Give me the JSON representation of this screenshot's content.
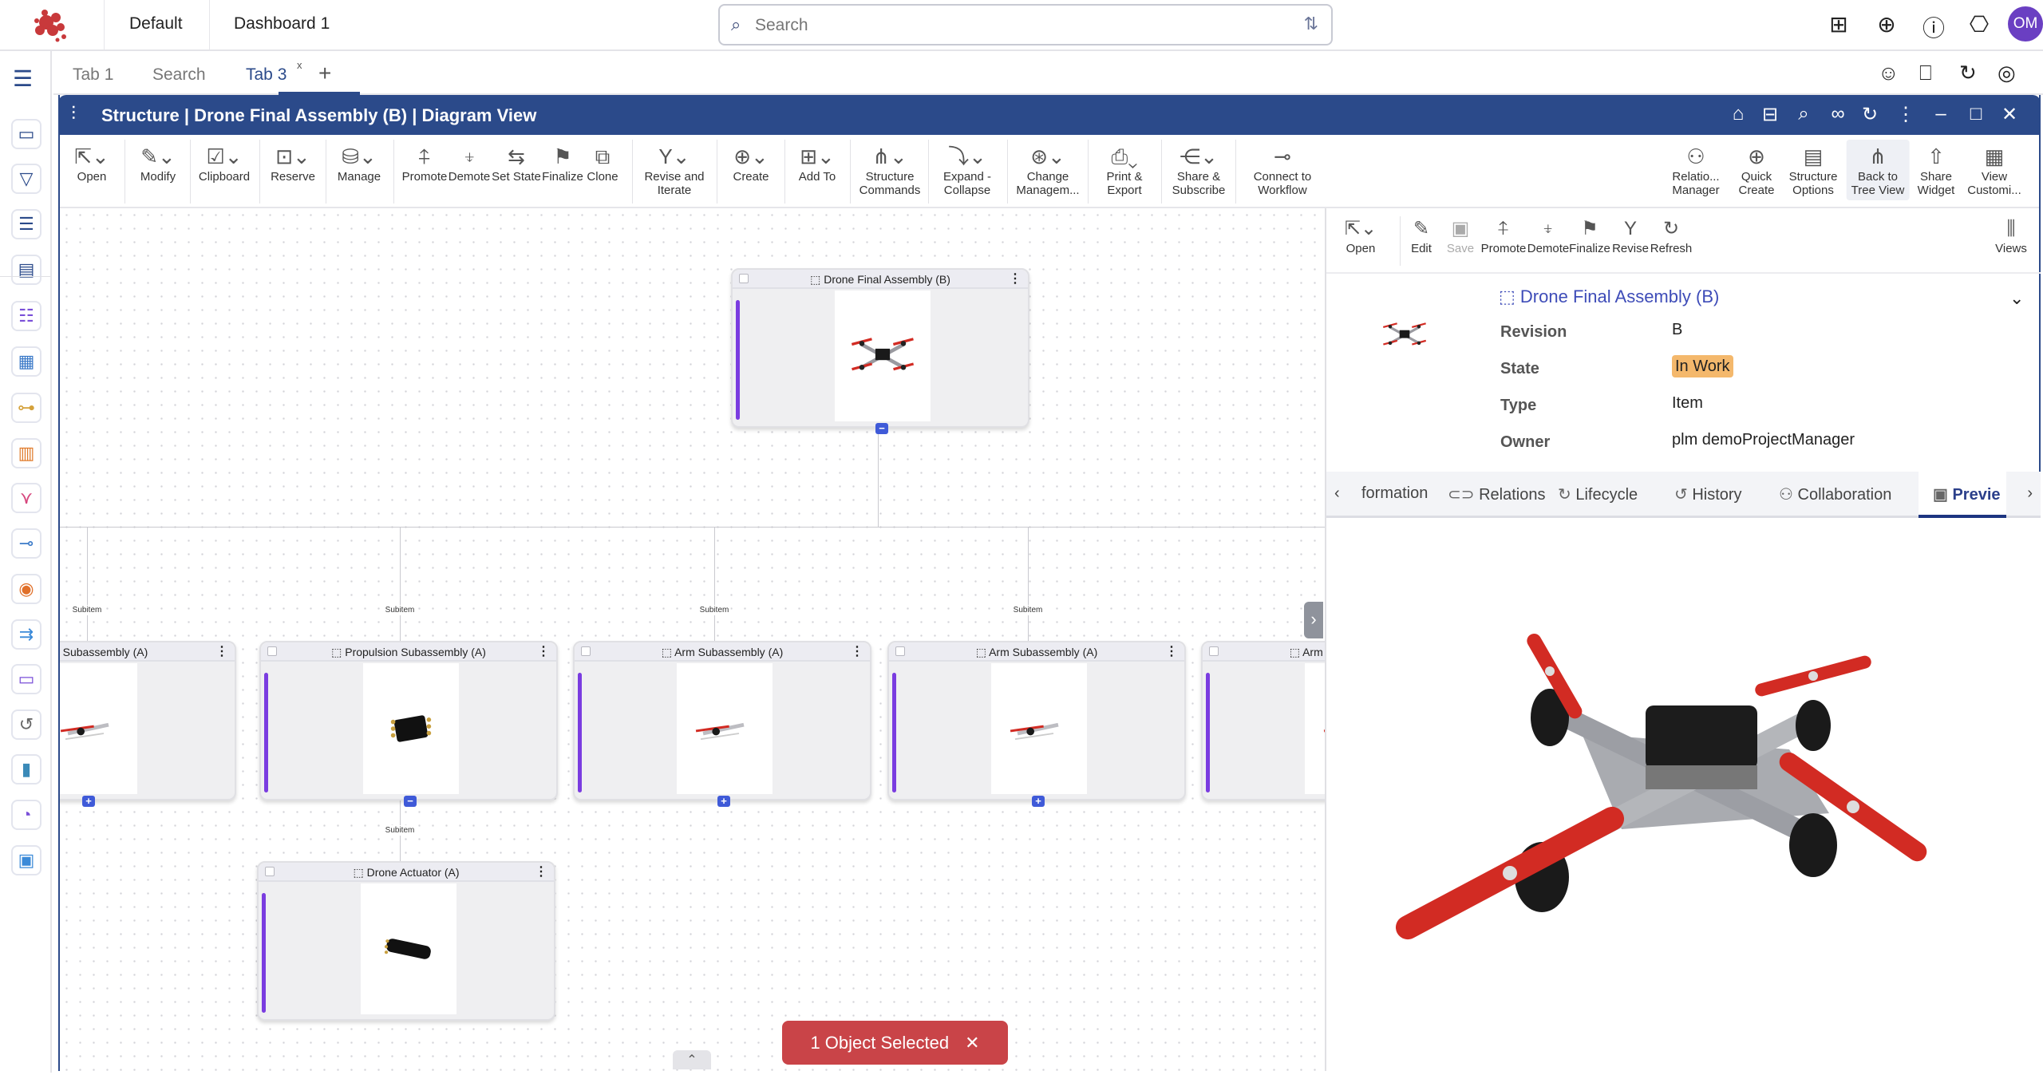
{
  "app": {
    "nav": [
      "Default",
      "Dashboard 1"
    ],
    "search_placeholder": "Search",
    "avatar_initials": "OM",
    "top_icons": [
      "excel-icon",
      "add-icon",
      "help-icon",
      "bell-icon"
    ],
    "brand_color": "#c8393b"
  },
  "sidebar": {
    "items": [
      {
        "icon": "window-icon",
        "color": "#2b4a8a",
        "glyph": "▭"
      },
      {
        "icon": "filter-icon",
        "color": "#2b4a8a",
        "glyph": "▽"
      },
      {
        "icon": "list-icon",
        "color": "#2b4a8a",
        "glyph": "☰"
      },
      {
        "icon": "clipboard-icon",
        "color": "#2b4a8a",
        "glyph": "▤"
      },
      {
        "icon": "form-list-icon",
        "color": "#7a4fd8",
        "glyph": "☷"
      },
      {
        "icon": "table-icon",
        "color": "#3b7ac8",
        "glyph": "▦"
      },
      {
        "icon": "tree-icon",
        "color": "#d4a13a",
        "glyph": "⊶"
      },
      {
        "icon": "board-icon",
        "color": "#e07a2a",
        "glyph": "▥"
      },
      {
        "icon": "branch-icon",
        "color": "#d6457c",
        "glyph": "⋎"
      },
      {
        "icon": "workflow-icon",
        "color": "#3b7ac8",
        "glyph": "⊸"
      },
      {
        "icon": "viewer-icon",
        "color": "#e0702a",
        "glyph": "◉"
      },
      {
        "icon": "merge-icon",
        "color": "#3b8ad8",
        "glyph": "⇉"
      },
      {
        "icon": "document-icon",
        "color": "#7a4fd8",
        "glyph": "▭"
      },
      {
        "icon": "history-icon",
        "color": "#666",
        "glyph": "↺"
      },
      {
        "icon": "chart-icon",
        "color": "#3b8ab8",
        "glyph": "▮"
      },
      {
        "icon": "gauge-icon",
        "color": "#7a4fd8",
        "glyph": "◔"
      },
      {
        "icon": "monitor-icon",
        "color": "#3b8ad8",
        "glyph": "▣"
      }
    ]
  },
  "tabs": {
    "items": [
      "Tab 1",
      "Search",
      "Tab 3"
    ],
    "active": "Tab 3",
    "close": "x",
    "add": "+"
  },
  "widget": {
    "title": "Structure | Drone Final Assembly (B) | Diagram View",
    "header_color": "#2b4a8a",
    "toolbar": [
      {
        "label": "Open",
        "icon": "open-icon",
        "glyph": "⇱⌄"
      },
      {
        "label": "Modify",
        "icon": "pencil-icon",
        "glyph": "✎⌄"
      },
      {
        "label": "Clipboard",
        "icon": "clipboard-icon",
        "glyph": "☑⌄"
      },
      {
        "label": "Reserve",
        "icon": "lock-icon",
        "glyph": "⊡⌄"
      },
      {
        "label": "Manage",
        "icon": "manage-icon",
        "glyph": "⛁⌄"
      },
      {
        "label": "Promote",
        "icon": "promote-icon",
        "glyph": "⍏"
      },
      {
        "label": "Demote",
        "icon": "demote-icon",
        "glyph": "⍖"
      },
      {
        "label": "Set State",
        "icon": "set-state-icon",
        "glyph": "⇆"
      },
      {
        "label": "Finalize",
        "icon": "flag-icon",
        "glyph": "⚑"
      },
      {
        "label": "Clone",
        "icon": "clone-icon",
        "glyph": "⧉"
      },
      {
        "label": "Revise and\nIterate",
        "icon": "revise-icon",
        "glyph": "Y⌄"
      },
      {
        "label": "Create",
        "icon": "create-icon",
        "glyph": "⊕⌄"
      },
      {
        "label": "Add To",
        "icon": "add-to-icon",
        "glyph": "⊞⌄"
      },
      {
        "label": "Structure\nCommands",
        "icon": "structure-icon",
        "glyph": "⋔⌄"
      },
      {
        "label": "Expand -\nCollapse",
        "icon": "expand-icon",
        "glyph": "⤵⌄"
      },
      {
        "label": "Change\nManagem...",
        "icon": "change-icon",
        "glyph": "⊛⌄"
      },
      {
        "label": "Print &\nExport",
        "icon": "print-icon",
        "glyph": "⎙⌄"
      },
      {
        "label": "Share &\nSubscribe",
        "icon": "share-icon",
        "glyph": "⋲⌄"
      },
      {
        "label": "Connect to\nWorkflow",
        "icon": "workflow-icon",
        "glyph": "⊸"
      }
    ],
    "toolbar_right": [
      {
        "label": "Relatio...\nManager",
        "icon": "relations-icon",
        "glyph": "⚇"
      },
      {
        "label": "Quick\nCreate",
        "icon": "quick-create-icon",
        "glyph": "⊕"
      },
      {
        "label": "Structure\nOptions",
        "icon": "options-icon",
        "glyph": "▤"
      },
      {
        "label": "Back to\nTree View",
        "icon": "tree-view-icon",
        "glyph": "⋔",
        "highlighted": true
      },
      {
        "label": "Share\nWidget",
        "icon": "share-widget-icon",
        "glyph": "⇧"
      },
      {
        "label": "View\nCustomi...",
        "icon": "view-customize-icon",
        "glyph": "▦"
      }
    ]
  },
  "diagram": {
    "edge_label": "Subitem",
    "root": {
      "title": "Drone Final Assembly (B)",
      "image": "drone",
      "toggle": "−"
    },
    "children": [
      {
        "title": "Arm Subassembly (A)",
        "image": "arm",
        "toggle": "+"
      },
      {
        "title": "Propulsion Subassembly (A)",
        "image": "propulsion",
        "toggle": "−"
      },
      {
        "title": "Arm Subassembly (A)",
        "image": "arm",
        "toggle": "+"
      },
      {
        "title": "Arm Subassembly (A)",
        "image": "arm",
        "toggle": "+"
      },
      {
        "title": "Arm Subassembly (A)",
        "image": "arm",
        "toggle": ""
      }
    ],
    "grandchild": {
      "title": "Drone Actuator (A)",
      "image": "actuator",
      "toggle": ""
    },
    "accent_bar_color": "#7a3ce0",
    "selection_toast": "1 Object Selected",
    "toast_color": "#c94448"
  },
  "panel": {
    "toolbar": [
      {
        "label": "Open",
        "icon": "open-icon",
        "glyph": "⇱⌄"
      },
      {
        "label": "Edit",
        "icon": "edit-icon",
        "glyph": "✎"
      },
      {
        "label": "Save",
        "icon": "save-icon",
        "glyph": "▣",
        "disabled": true
      },
      {
        "label": "Promote",
        "icon": "promote-icon",
        "glyph": "⍏"
      },
      {
        "label": "Demote",
        "icon": "demote-icon",
        "glyph": "⍖"
      },
      {
        "label": "Finalize",
        "icon": "flag-icon",
        "glyph": "⚑"
      },
      {
        "label": "Revise",
        "icon": "revise-icon",
        "glyph": "Y"
      },
      {
        "label": "Refresh",
        "icon": "refresh-icon",
        "glyph": "↻"
      }
    ],
    "views_label": "Views",
    "object_title": "Drone Final Assembly (B)",
    "properties": [
      {
        "label": "Revision",
        "value": "B"
      },
      {
        "label": "State",
        "value": "In Work"
      },
      {
        "label": "Type",
        "value": "Item"
      },
      {
        "label": "Owner",
        "value": "plm demoProjectManager"
      }
    ],
    "state_color": "#f4b86c",
    "tabs": [
      {
        "label": "formation",
        "icon": ""
      },
      {
        "label": "Relations",
        "icon": "link-icon"
      },
      {
        "label": "Lifecycle",
        "icon": "lifecycle-icon"
      },
      {
        "label": "History",
        "icon": "history-icon"
      },
      {
        "label": "Collaboration",
        "icon": "collaboration-icon"
      },
      {
        "label": "Previe",
        "icon": "preview-icon",
        "active": true
      }
    ]
  }
}
